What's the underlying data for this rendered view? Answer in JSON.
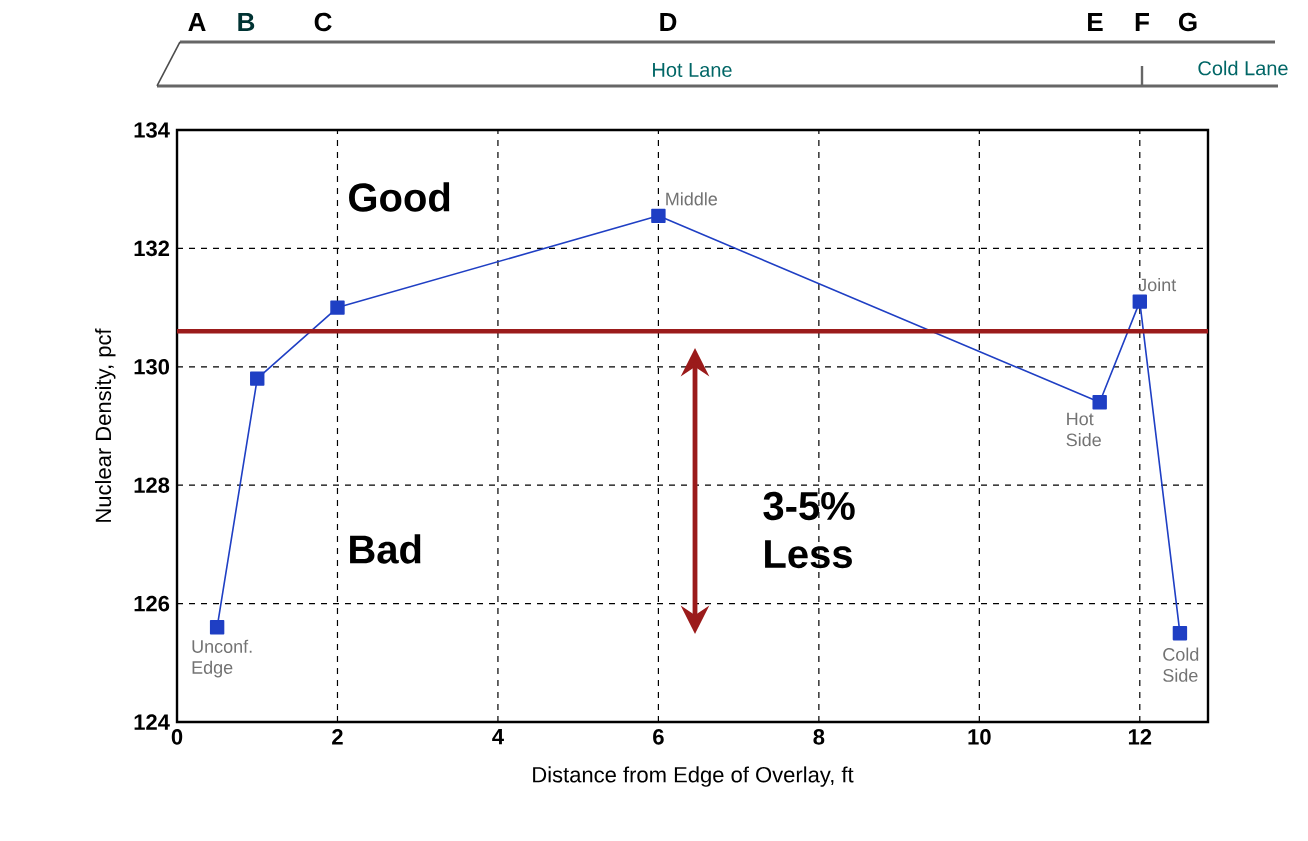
{
  "chart_data": {
    "type": "line",
    "xlabel": "Distance from Edge of Overlay, ft",
    "ylabel": "Nuclear Density, pcf",
    "x": [
      0.5,
      1,
      2,
      6,
      11.5,
      12,
      12.5
    ],
    "series": [
      {
        "color": "#1f3fc4",
        "values": [
          125.6,
          129.8,
          131.0,
          132.55,
          129.4,
          131.1,
          125.5
        ]
      }
    ],
    "xlim": [
      0,
      12.85
    ],
    "ylim": [
      124,
      134
    ],
    "xticks": [
      0,
      2,
      4,
      6,
      8,
      10,
      12
    ],
    "yticks": [
      124,
      126,
      128,
      130,
      132,
      134
    ],
    "grid": true,
    "marker": "square",
    "line_style": "solid",
    "ref_lines": [
      {
        "axis": "y",
        "value": 130.6,
        "label": null,
        "color": "#9b1b1b"
      }
    ],
    "annotations": [
      "Good",
      "Bad",
      "3-5% Less",
      "A",
      "B",
      "C",
      "D",
      "E",
      "F",
      "G",
      "Hot Lane",
      "Cold Lane",
      {
        "text": "Unconf. Edge",
        "x": 0.5,
        "y": 125.6
      },
      {
        "text": "Middle",
        "x": 6,
        "y": 132.55
      },
      {
        "text": "Joint",
        "x": 12,
        "y": 131.1
      },
      {
        "text": "Hot Side",
        "x": 11.5,
        "y": 129.4
      },
      {
        "text": "Cold Side",
        "x": 12.5,
        "y": 125.5
      }
    ]
  }
}
